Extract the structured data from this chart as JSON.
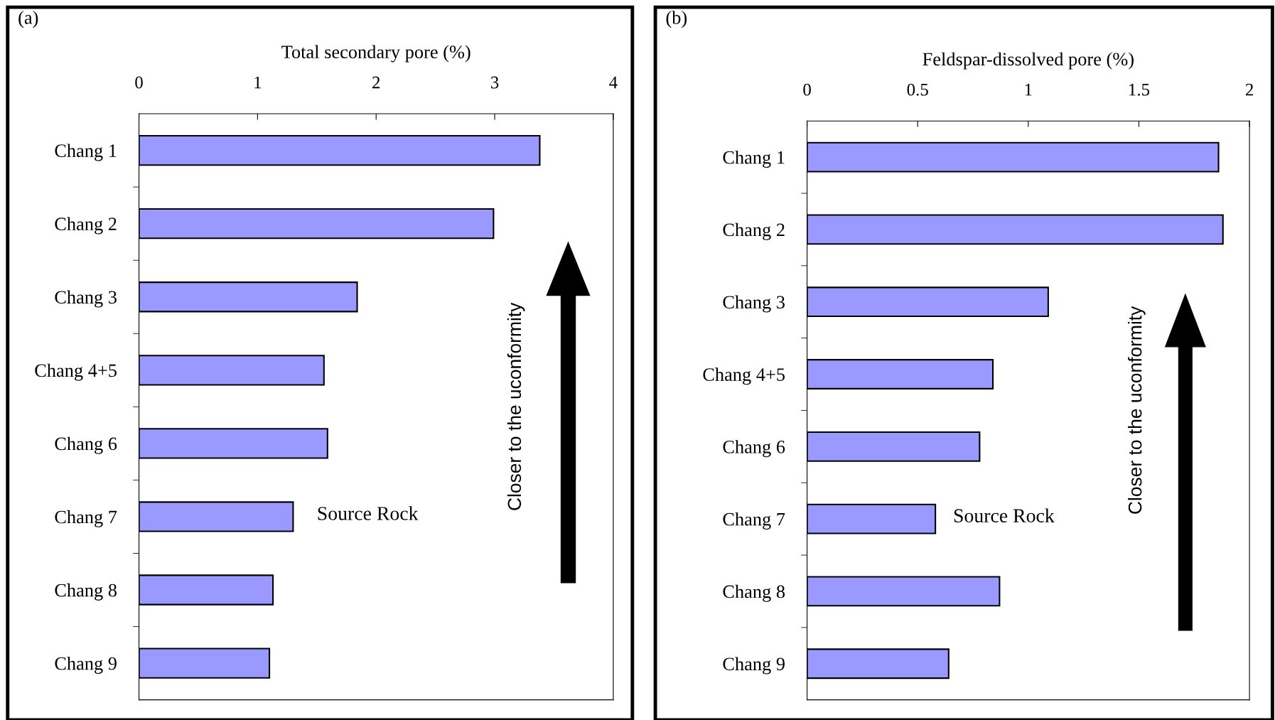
{
  "chart_data": [
    {
      "type": "bar",
      "orientation": "horizontal",
      "title": "(a)",
      "xlabel": "Total secondary pore (%)",
      "categories": [
        "Chang 1",
        "Chang 2",
        "Chang 3",
        "Chang 4+5",
        "Chang 6",
        "Chang 7",
        "Chang 8",
        "Chang 9"
      ],
      "values": [
        3.38,
        2.99,
        1.84,
        1.56,
        1.59,
        1.3,
        1.13,
        1.1
      ],
      "color": "#9999ff",
      "xlim": [
        0,
        4
      ],
      "xticks": [
        0,
        1,
        2,
        3,
        4
      ],
      "grid": false,
      "legend": false,
      "annotations": [
        "Source Rock",
        "Closer to the uconformity"
      ]
    },
    {
      "type": "bar",
      "orientation": "horizontal",
      "title": "(b)",
      "xlabel": "Feldspar-dissolved pore (%)",
      "categories": [
        "Chang 1",
        "Chang 2",
        "Chang 3",
        "Chang 4+5",
        "Chang 6",
        "Chang 7",
        "Chang 8",
        "Chang 9"
      ],
      "values": [
        1.86,
        1.88,
        1.09,
        0.84,
        0.78,
        0.58,
        0.87,
        0.64
      ],
      "color": "#9999ff",
      "xlim": [
        0,
        2
      ],
      "xticks": [
        0,
        0.5,
        1,
        1.5,
        2
      ],
      "grid": false,
      "legend": false,
      "annotations": [
        "Source Rock",
        "Closer to the uconformity"
      ]
    }
  ]
}
